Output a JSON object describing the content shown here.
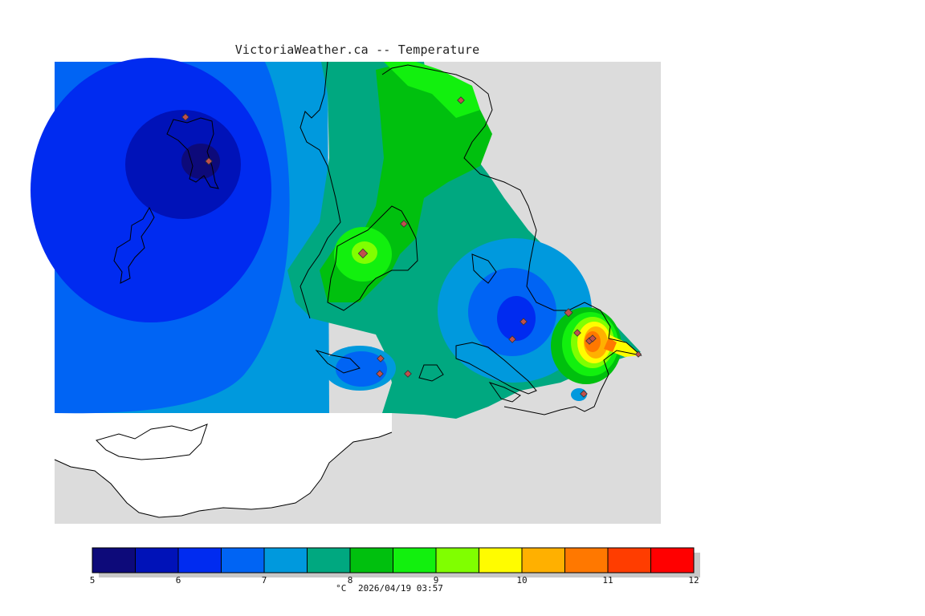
{
  "title": "VictoriaWeather.ca -- Temperature",
  "colors": {
    "land_gray": "#dcdcdc",
    "outside_white": "#ffffff",
    "station_fill": "#c0504d"
  },
  "legend": {
    "unit": "°C",
    "timestamp": "2026/04/19 03:57",
    "tick_labels": [
      "5",
      "6",
      "7",
      "8",
      "9",
      "10",
      "11",
      "12"
    ],
    "bins": [
      {
        "min": 5.0,
        "max": 5.5,
        "color": "#0d0a7a"
      },
      {
        "min": 5.5,
        "max": 6.0,
        "color": "#0012b8"
      },
      {
        "min": 6.0,
        "max": 6.5,
        "color": "#002bf0"
      },
      {
        "min": 6.5,
        "max": 7.0,
        "color": "#0064f4"
      },
      {
        "min": 7.0,
        "max": 7.5,
        "color": "#0099dd"
      },
      {
        "min": 7.5,
        "max": 8.0,
        "color": "#00a880"
      },
      {
        "min": 8.0,
        "max": 8.5,
        "color": "#00c00e"
      },
      {
        "min": 8.5,
        "max": 9.0,
        "color": "#12f00e"
      },
      {
        "min": 9.0,
        "max": 9.5,
        "color": "#80ff00"
      },
      {
        "min": 9.5,
        "max": 10.0,
        "color": "#fffc00"
      },
      {
        "min": 10.0,
        "max": 10.5,
        "color": "#ffb000"
      },
      {
        "min": 10.5,
        "max": 11.0,
        "color": "#ff7800"
      },
      {
        "min": 11.0,
        "max": 11.5,
        "color": "#ff3d00"
      },
      {
        "min": 11.5,
        "max": 12.0,
        "color": "#ff0000"
      }
    ]
  }
}
